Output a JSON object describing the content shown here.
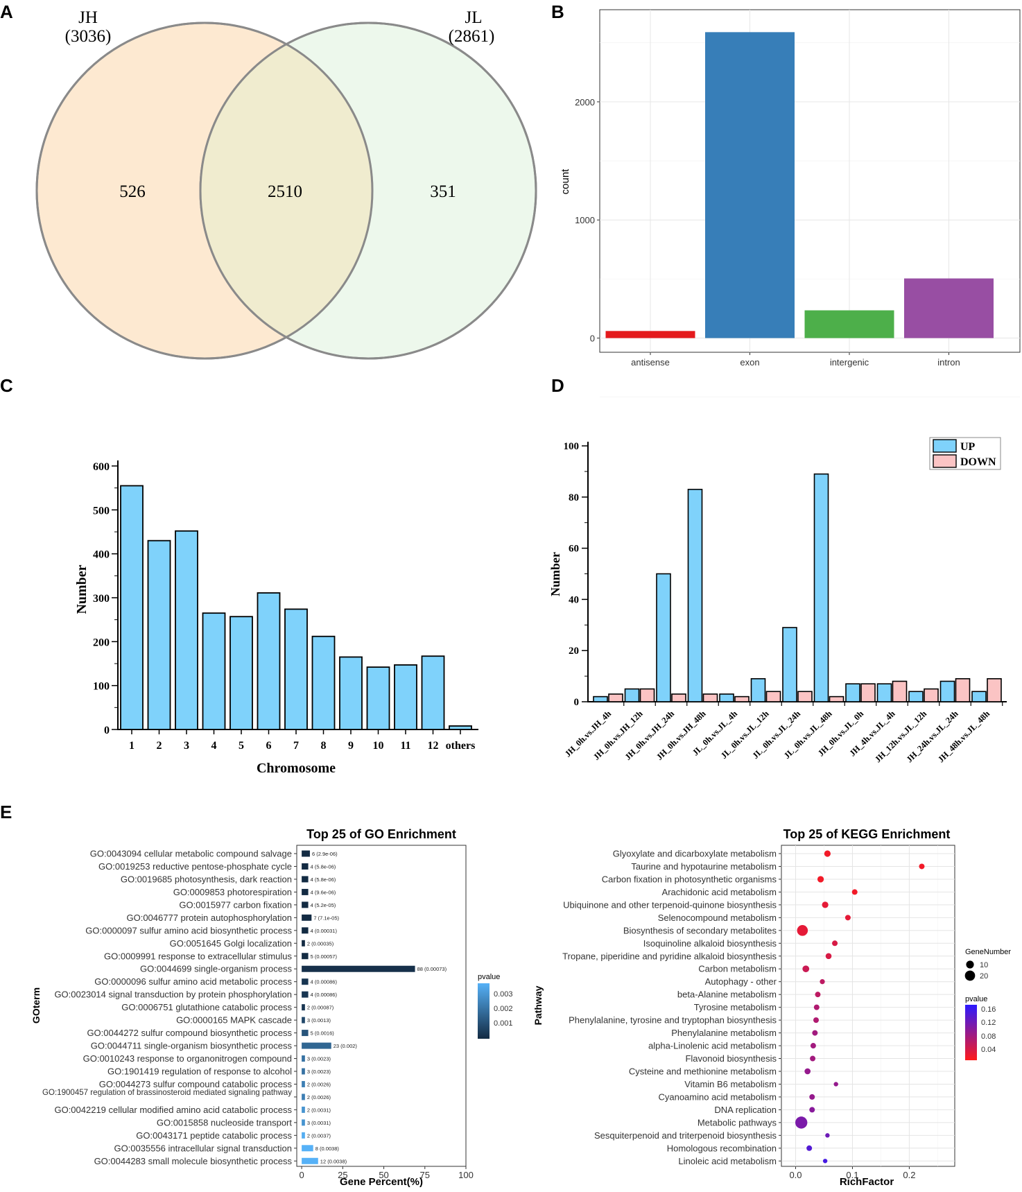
{
  "panel_labels": [
    "A",
    "B",
    "C",
    "D",
    "E"
  ],
  "colors": {
    "venn_left": "#fde9d1",
    "venn_right": "#e6f5e4",
    "venn_stroke": "#8a8a8a",
    "antisense": "#e41a1c",
    "exon": "#377eb8",
    "intergenic": "#4daf4a",
    "intron": "#984ea3",
    "blue_bar": "#7fd2fb",
    "pink_bar": "#fbc4c4",
    "go_dark": "#132b43",
    "go_light": "#56b1f7",
    "kegg_red": "#ff1a1a",
    "kegg_blue": "#2b1aff"
  },
  "chart_data": [
    {
      "panel": "A",
      "type": "venn",
      "sets": [
        {
          "name": "JH",
          "total": "(3036)",
          "only": "526"
        },
        {
          "name": "JL",
          "total": "(2861)",
          "only": "351"
        }
      ],
      "intersection": "2510"
    },
    {
      "panel": "B",
      "type": "bar",
      "categories": [
        "antisense",
        "exon",
        "intergenic",
        "intron"
      ],
      "values": [
        60,
        2590,
        235,
        505
      ],
      "ylabel": "count",
      "xlabel": "",
      "yticks": [
        0,
        1000,
        2000
      ],
      "ylim": [
        -120,
        2780
      ]
    },
    {
      "panel": "C",
      "type": "bar",
      "categories": [
        "1",
        "2",
        "3",
        "4",
        "5",
        "6",
        "7",
        "8",
        "9",
        "10",
        "11",
        "12",
        "others"
      ],
      "values": [
        555,
        430,
        452,
        265,
        257,
        311,
        274,
        212,
        165,
        142,
        147,
        167,
        8
      ],
      "xlabel": "Chromosome",
      "ylabel": "Number",
      "yticks": [
        0,
        100,
        200,
        300,
        400,
        500,
        600
      ],
      "ylim": [
        0,
        600
      ]
    },
    {
      "panel": "D",
      "type": "bar",
      "categories": [
        "JH_0h.vs.JH_4h",
        "JH_0h.vs.JH_12h",
        "JH_0h.vs.JH_24h",
        "JH_0h.vs.JH_48h",
        "JL_0h.vs.JL_4h",
        "JL_0h.vs.JL_12h",
        "JL_0h.vs.JL_24h",
        "JL_0h.vs.JL_48h",
        "JH_0h.vs.JL_0h",
        "JH_4h.vs.JL_4h",
        "JH_12h.vs.JL_12h",
        "JH_24h.vs.JL_24h",
        "JH_48h.vs.JL_48h"
      ],
      "series": [
        {
          "name": "UP",
          "values": [
            2,
            5,
            50,
            83,
            3,
            9,
            29,
            89,
            7,
            7,
            4,
            8,
            4
          ]
        },
        {
          "name": "DOWN",
          "values": [
            3,
            5,
            3,
            3,
            2,
            4,
            4,
            2,
            7,
            8,
            5,
            9,
            9
          ]
        }
      ],
      "ylabel": "Number",
      "xlabel": "",
      "yticks": [
        0,
        20,
        40,
        60,
        80,
        100
      ],
      "ylim": [
        0,
        100
      ]
    },
    {
      "panel": "E-GO",
      "type": "bar",
      "orientation": "horizontal",
      "title": "Top 25 of GO Enrichment",
      "xlabel": "Gene Percent(%)",
      "ylabel": "GOterm",
      "xticks": [
        0,
        25,
        50,
        75,
        100
      ],
      "xlim": [
        -3,
        100
      ],
      "legend_title": "pvalue",
      "legend_ticks": [
        "0.003",
        "0.002",
        "0.001"
      ],
      "categories": [
        "GO:0043094 cellular metabolic compound salvage",
        "GO:0019253 reductive pentose-phosphate cycle",
        "GO:0019685 photosynthesis, dark reaction",
        "GO:0009853 photorespiration",
        "GO:0015977 carbon fixation",
        "GO:0046777 protein autophosphorylation",
        "GO:0000097 sulfur amino acid biosynthetic process",
        "GO:0051645 Golgi localization",
        "GO:0009991 response to extracellular stimulus",
        "GO:0044699 single-organism process",
        "GO:0000096 sulfur amino acid metabolic process",
        "GO:0023014 signal transduction by protein phosphorylation",
        "GO:0006751 glutathione catabolic process",
        "GO:0000165 MAPK cascade",
        "GO:0044272 sulfur compound biosynthetic process",
        "GO:0044711 single-organism biosynthetic process",
        "GO:0010243 response to organonitrogen compound",
        "GO:1901419 regulation of response to alcohol",
        "GO:0044273 sulfur compound catabolic process",
        "GO:1900457 regulation of brassinosteroid mediated signaling pathway",
        "GO:0042219 cellular modified amino acid catabolic process",
        "GO:0015858 nucleoside transport",
        "GO:0043171 peptide catabolic process",
        "GO:0035556 intracellular signal transduction",
        "GO:0044283 small molecule biosynthetic process"
      ],
      "values": [
        5,
        4,
        4,
        4,
        4,
        6,
        4,
        2,
        4,
        69,
        4,
        4,
        2,
        2,
        4,
        18,
        2,
        2,
        2,
        2,
        2,
        2,
        2,
        7,
        10
      ],
      "pvalues": [
        2.9e-06,
        5.8e-06,
        5.8e-06,
        9.6e-06,
        5.2e-05,
        7.1e-05,
        0.00031,
        0.00035,
        0.00057,
        0.00073,
        0.00086,
        0.00086,
        0.00087,
        0.0013,
        0.0016,
        0.002,
        0.0023,
        0.0023,
        0.0026,
        0.0026,
        0.0031,
        0.0031,
        0.0037,
        0.0038,
        0.0038
      ],
      "bar_labels": [
        "6 (2.9e-06)",
        "4 (5.8e-06)",
        "4 (5.8e-06)",
        "4 (9.6e-06)",
        "4 (5.2e-05)",
        "7 (7.1e-05)",
        "4 (0.00031)",
        "2 (0.00035)",
        "5 (0.00057)",
        "88 (0.00073)",
        "4 (0.00086)",
        "4 (0.00086)",
        "2 (0.00087)",
        "3 (0.0013)",
        "5 (0.0016)",
        "23 (0.002)",
        "3 (0.0023)",
        "3 (0.0023)",
        "2 (0.0026)",
        "2 (0.0026)",
        "2 (0.0031)",
        "3 (0.0031)",
        "2 (0.0037)",
        "8 (0.0038)",
        "12 (0.0038)"
      ]
    },
    {
      "panel": "E-KEGG",
      "type": "scatter",
      "title": "Top 25 of KEGG Enrichment",
      "xlabel": "RichFactor",
      "ylabel": "Pathway",
      "xticks": [
        0.0,
        0.1,
        0.2
      ],
      "xtick_labels": [
        "0.0",
        "0.1",
        "0.2"
      ],
      "xlim": [
        -0.025,
        0.28
      ],
      "size_legend_title": "GeneNumber",
      "size_legend": [
        10,
        20
      ],
      "color_legend_title": "pvalue",
      "color_legend_ticks": [
        "0.16",
        "0.12",
        "0.08",
        "0.04"
      ],
      "categories": [
        "Glyoxylate and dicarboxylate metabolism",
        "Taurine and hypotaurine metabolism",
        "Carbon fixation in photosynthetic organisms",
        "Arachidonic acid metabolism",
        "Ubiquinone and other terpenoid-quinone biosynthesis",
        "Selenocompound metabolism",
        "Biosynthesis of secondary metabolites",
        "Isoquinoline alkaloid biosynthesis",
        "Tropane, piperidine and pyridine alkaloid biosynthesis",
        "Carbon metabolism",
        "Autophagy - other",
        "beta-Alanine metabolism",
        "Tyrosine metabolism",
        "Phenylalanine, tyrosine and tryptophan biosynthesis",
        "Phenylalanine metabolism",
        "alpha-Linolenic acid metabolism",
        "Flavonoid biosynthesis",
        "Cysteine and methionine metabolism",
        "Vitamin B6 metabolism",
        "Cyanoamino acid metabolism",
        "DNA replication",
        "Metabolic pathways",
        "Sesquiterpenoid and triterpenoid biosynthesis",
        "Homologous recombination",
        "Linoleic acid metabolism"
      ],
      "x": [
        0.056,
        0.222,
        0.044,
        0.104,
        0.052,
        0.092,
        0.012,
        0.069,
        0.058,
        0.018,
        0.047,
        0.039,
        0.037,
        0.036,
        0.034,
        0.031,
        0.03,
        0.021,
        0.071,
        0.029,
        0.029,
        0.01,
        0.056,
        0.024,
        0.052
      ],
      "gene_number": [
        6,
        4,
        6,
        4,
        6,
        4,
        23,
        4,
        5,
        7,
        3,
        4,
        4,
        4,
        4,
        4,
        4,
        5,
        2,
        4,
        4,
        30,
        2,
        4,
        2
      ],
      "pvalue": [
        0.01,
        0.01,
        0.01,
        0.01,
        0.02,
        0.02,
        0.02,
        0.03,
        0.03,
        0.04,
        0.05,
        0.05,
        0.06,
        0.06,
        0.07,
        0.07,
        0.07,
        0.08,
        0.08,
        0.08,
        0.09,
        0.1,
        0.11,
        0.13,
        0.14
      ]
    }
  ]
}
